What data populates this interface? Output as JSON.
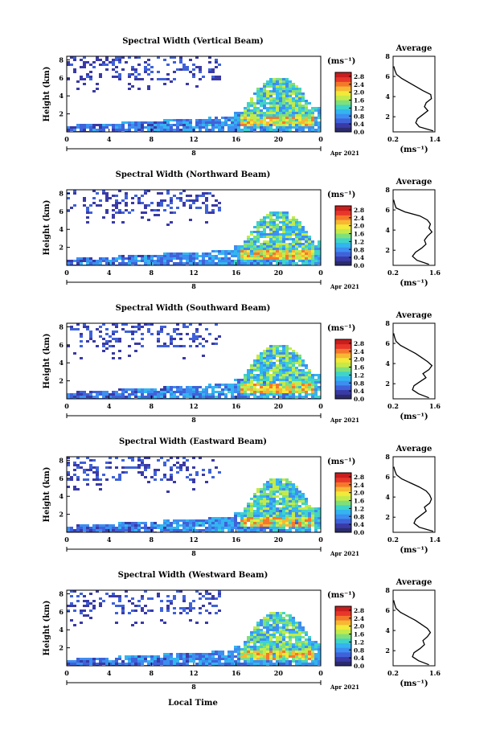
{
  "figure": {
    "bottom_label": "Local Time"
  },
  "chart_data": [
    {
      "type": "heatmap",
      "title": "Spectral Width (Vertical Beam)",
      "ylabel": "Height (km)",
      "xticks": [
        "0",
        "4",
        "8",
        "12",
        "16",
        "20",
        "0"
      ],
      "yticks": [
        "2",
        "4",
        "6",
        "8"
      ],
      "date_tick": "8",
      "date_label": "Apr 2021",
      "colorbar": {
        "unit": "(ms⁻¹)",
        "ticks": [
          "0.0",
          "0.4",
          "0.8",
          "1.2",
          "1.6",
          "2.0",
          "2.4",
          "2.8"
        ],
        "range": [
          0,
          3.0
        ]
      },
      "average": {
        "title": "Average",
        "xlabel": "(ms⁻¹)",
        "xticks": [
          "0.2",
          "1.4"
        ],
        "xlim": [
          0.2,
          1.4
        ],
        "yticks": [
          "2",
          "4",
          "6",
          "8"
        ],
        "ylim": [
          0.5,
          8.0
        ],
        "height": [
          0.6,
          1.0,
          1.4,
          1.8,
          2.2,
          2.6,
          3.0,
          3.4,
          3.8,
          4.2,
          4.6,
          5.0,
          5.4,
          5.8,
          6.2,
          6.6,
          7.0
        ],
        "width": [
          1.35,
          0.95,
          0.85,
          0.9,
          1.05,
          1.2,
          1.1,
          1.15,
          1.3,
          1.28,
          1.05,
          0.85,
          0.65,
          0.45,
          0.3,
          0.25,
          0.22
        ]
      }
    },
    {
      "type": "heatmap",
      "title": "Spectral Width (Northward Beam)",
      "ylabel": "Height (km)",
      "xticks": [
        "0",
        "4",
        "8",
        "12",
        "16",
        "20",
        "0"
      ],
      "yticks": [
        "2",
        "4",
        "6",
        "8"
      ],
      "date_tick": "8",
      "date_label": "Apr 2021",
      "colorbar": {
        "unit": "(ms⁻¹)",
        "ticks": [
          "0.0",
          "0.4",
          "0.8",
          "1.2",
          "1.6",
          "2.0",
          "2.4",
          "2.8"
        ],
        "range": [
          0,
          3.0
        ]
      },
      "average": {
        "title": "Average",
        "xlabel": "(ms⁻¹)",
        "xticks": [
          "0.2",
          "1.6"
        ],
        "xlim": [
          0.2,
          1.6
        ],
        "yticks": [
          "2",
          "4",
          "6",
          "8"
        ],
        "ylim": [
          0.5,
          8.0
        ],
        "height": [
          0.6,
          1.0,
          1.4,
          1.8,
          2.2,
          2.6,
          3.0,
          3.4,
          3.8,
          4.2,
          4.6,
          5.0,
          5.4,
          5.8,
          6.2,
          6.6,
          7.0
        ],
        "width": [
          1.4,
          1.0,
          0.85,
          0.95,
          1.15,
          1.3,
          1.25,
          1.35,
          1.5,
          1.4,
          1.45,
          1.35,
          1.1,
          0.6,
          0.3,
          0.25,
          0.22
        ]
      }
    },
    {
      "type": "heatmap",
      "title": "Spectral Width (Southward Beam)",
      "ylabel": "Height (km)",
      "xticks": [
        "0",
        "4",
        "8",
        "12",
        "16",
        "20",
        "0"
      ],
      "yticks": [
        "2",
        "4",
        "6",
        "8"
      ],
      "date_tick": "8",
      "date_label": "Apr 2021",
      "colorbar": {
        "unit": "(ms⁻¹)",
        "ticks": [
          "0.0",
          "0.4",
          "0.8",
          "1.2",
          "1.6",
          "2.0",
          "2.4",
          "2.8"
        ],
        "range": [
          0,
          3.0
        ]
      },
      "average": {
        "title": "Average",
        "xlabel": "(ms⁻¹)",
        "xticks": [
          "0.2",
          "1.6"
        ],
        "xlim": [
          0.2,
          1.6
        ],
        "yticks": [
          "2",
          "4",
          "6",
          "8"
        ],
        "ylim": [
          0.5,
          8.0
        ],
        "height": [
          0.6,
          1.0,
          1.4,
          1.8,
          2.2,
          2.6,
          3.0,
          3.4,
          3.8,
          4.2,
          4.6,
          5.0,
          5.4,
          5.8,
          6.2,
          6.6,
          7.0
        ],
        "width": [
          1.4,
          1.05,
          0.85,
          0.9,
          1.1,
          1.3,
          1.2,
          1.4,
          1.5,
          1.35,
          1.15,
          0.95,
          0.7,
          0.45,
          0.3,
          0.25,
          0.22
        ]
      }
    },
    {
      "type": "heatmap",
      "title": "Spectral Width (Eastward Beam)",
      "ylabel": "Height (km)",
      "xticks": [
        "0",
        "4",
        "8",
        "12",
        "16",
        "20",
        "0"
      ],
      "yticks": [
        "2",
        "4",
        "6",
        "8"
      ],
      "date_tick": "8",
      "date_label": "Apr 2021",
      "colorbar": {
        "unit": "(ms⁻¹)",
        "ticks": [
          "0.0",
          "0.4",
          "0.8",
          "1.2",
          "1.6",
          "2.0",
          "2.4",
          "2.8"
        ],
        "range": [
          0,
          3.0
        ]
      },
      "average": {
        "title": "Average",
        "xlabel": "(ms⁻¹)",
        "xticks": [
          "0.2",
          "1.4"
        ],
        "xlim": [
          0.2,
          1.4
        ],
        "yticks": [
          "2",
          "4",
          "6",
          "8"
        ],
        "ylim": [
          0.5,
          8.0
        ],
        "height": [
          0.6,
          1.0,
          1.4,
          1.8,
          2.2,
          2.6,
          3.0,
          3.4,
          3.8,
          4.2,
          4.6,
          5.0,
          5.4,
          5.8,
          6.2,
          6.6,
          7.0
        ],
        "width": [
          1.35,
          0.95,
          0.8,
          0.85,
          1.0,
          1.15,
          1.1,
          1.25,
          1.3,
          1.25,
          1.15,
          0.95,
          0.7,
          0.45,
          0.3,
          0.25,
          0.22
        ]
      }
    },
    {
      "type": "heatmap",
      "title": "Spectral Width (Westward Beam)",
      "ylabel": "Height (km)",
      "xticks": [
        "0",
        "4",
        "8",
        "12",
        "16",
        "20",
        "0"
      ],
      "yticks": [
        "2",
        "4",
        "6",
        "8"
      ],
      "date_tick": "8",
      "date_label": "Apr 2021",
      "colorbar": {
        "unit": "(ms⁻¹)",
        "ticks": [
          "0.0",
          "0.4",
          "0.8",
          "1.2",
          "1.6",
          "2.0",
          "2.4",
          "2.8"
        ],
        "range": [
          0,
          3.0
        ]
      },
      "average": {
        "title": "Average",
        "xlabel": "(ms⁻¹)",
        "xticks": [
          "0.2",
          "1.6"
        ],
        "xlim": [
          0.2,
          1.6
        ],
        "yticks": [
          "2",
          "4",
          "6",
          "8"
        ],
        "ylim": [
          0.5,
          8.0
        ],
        "height": [
          0.6,
          1.0,
          1.4,
          1.8,
          2.2,
          2.6,
          3.0,
          3.4,
          3.8,
          4.2,
          4.6,
          5.0,
          5.4,
          5.8,
          6.2,
          6.6,
          7.0
        ],
        "width": [
          1.4,
          1.05,
          0.85,
          0.9,
          1.1,
          1.25,
          1.2,
          1.35,
          1.45,
          1.35,
          1.15,
          0.95,
          0.7,
          0.45,
          0.3,
          0.25,
          0.22
        ]
      }
    }
  ]
}
